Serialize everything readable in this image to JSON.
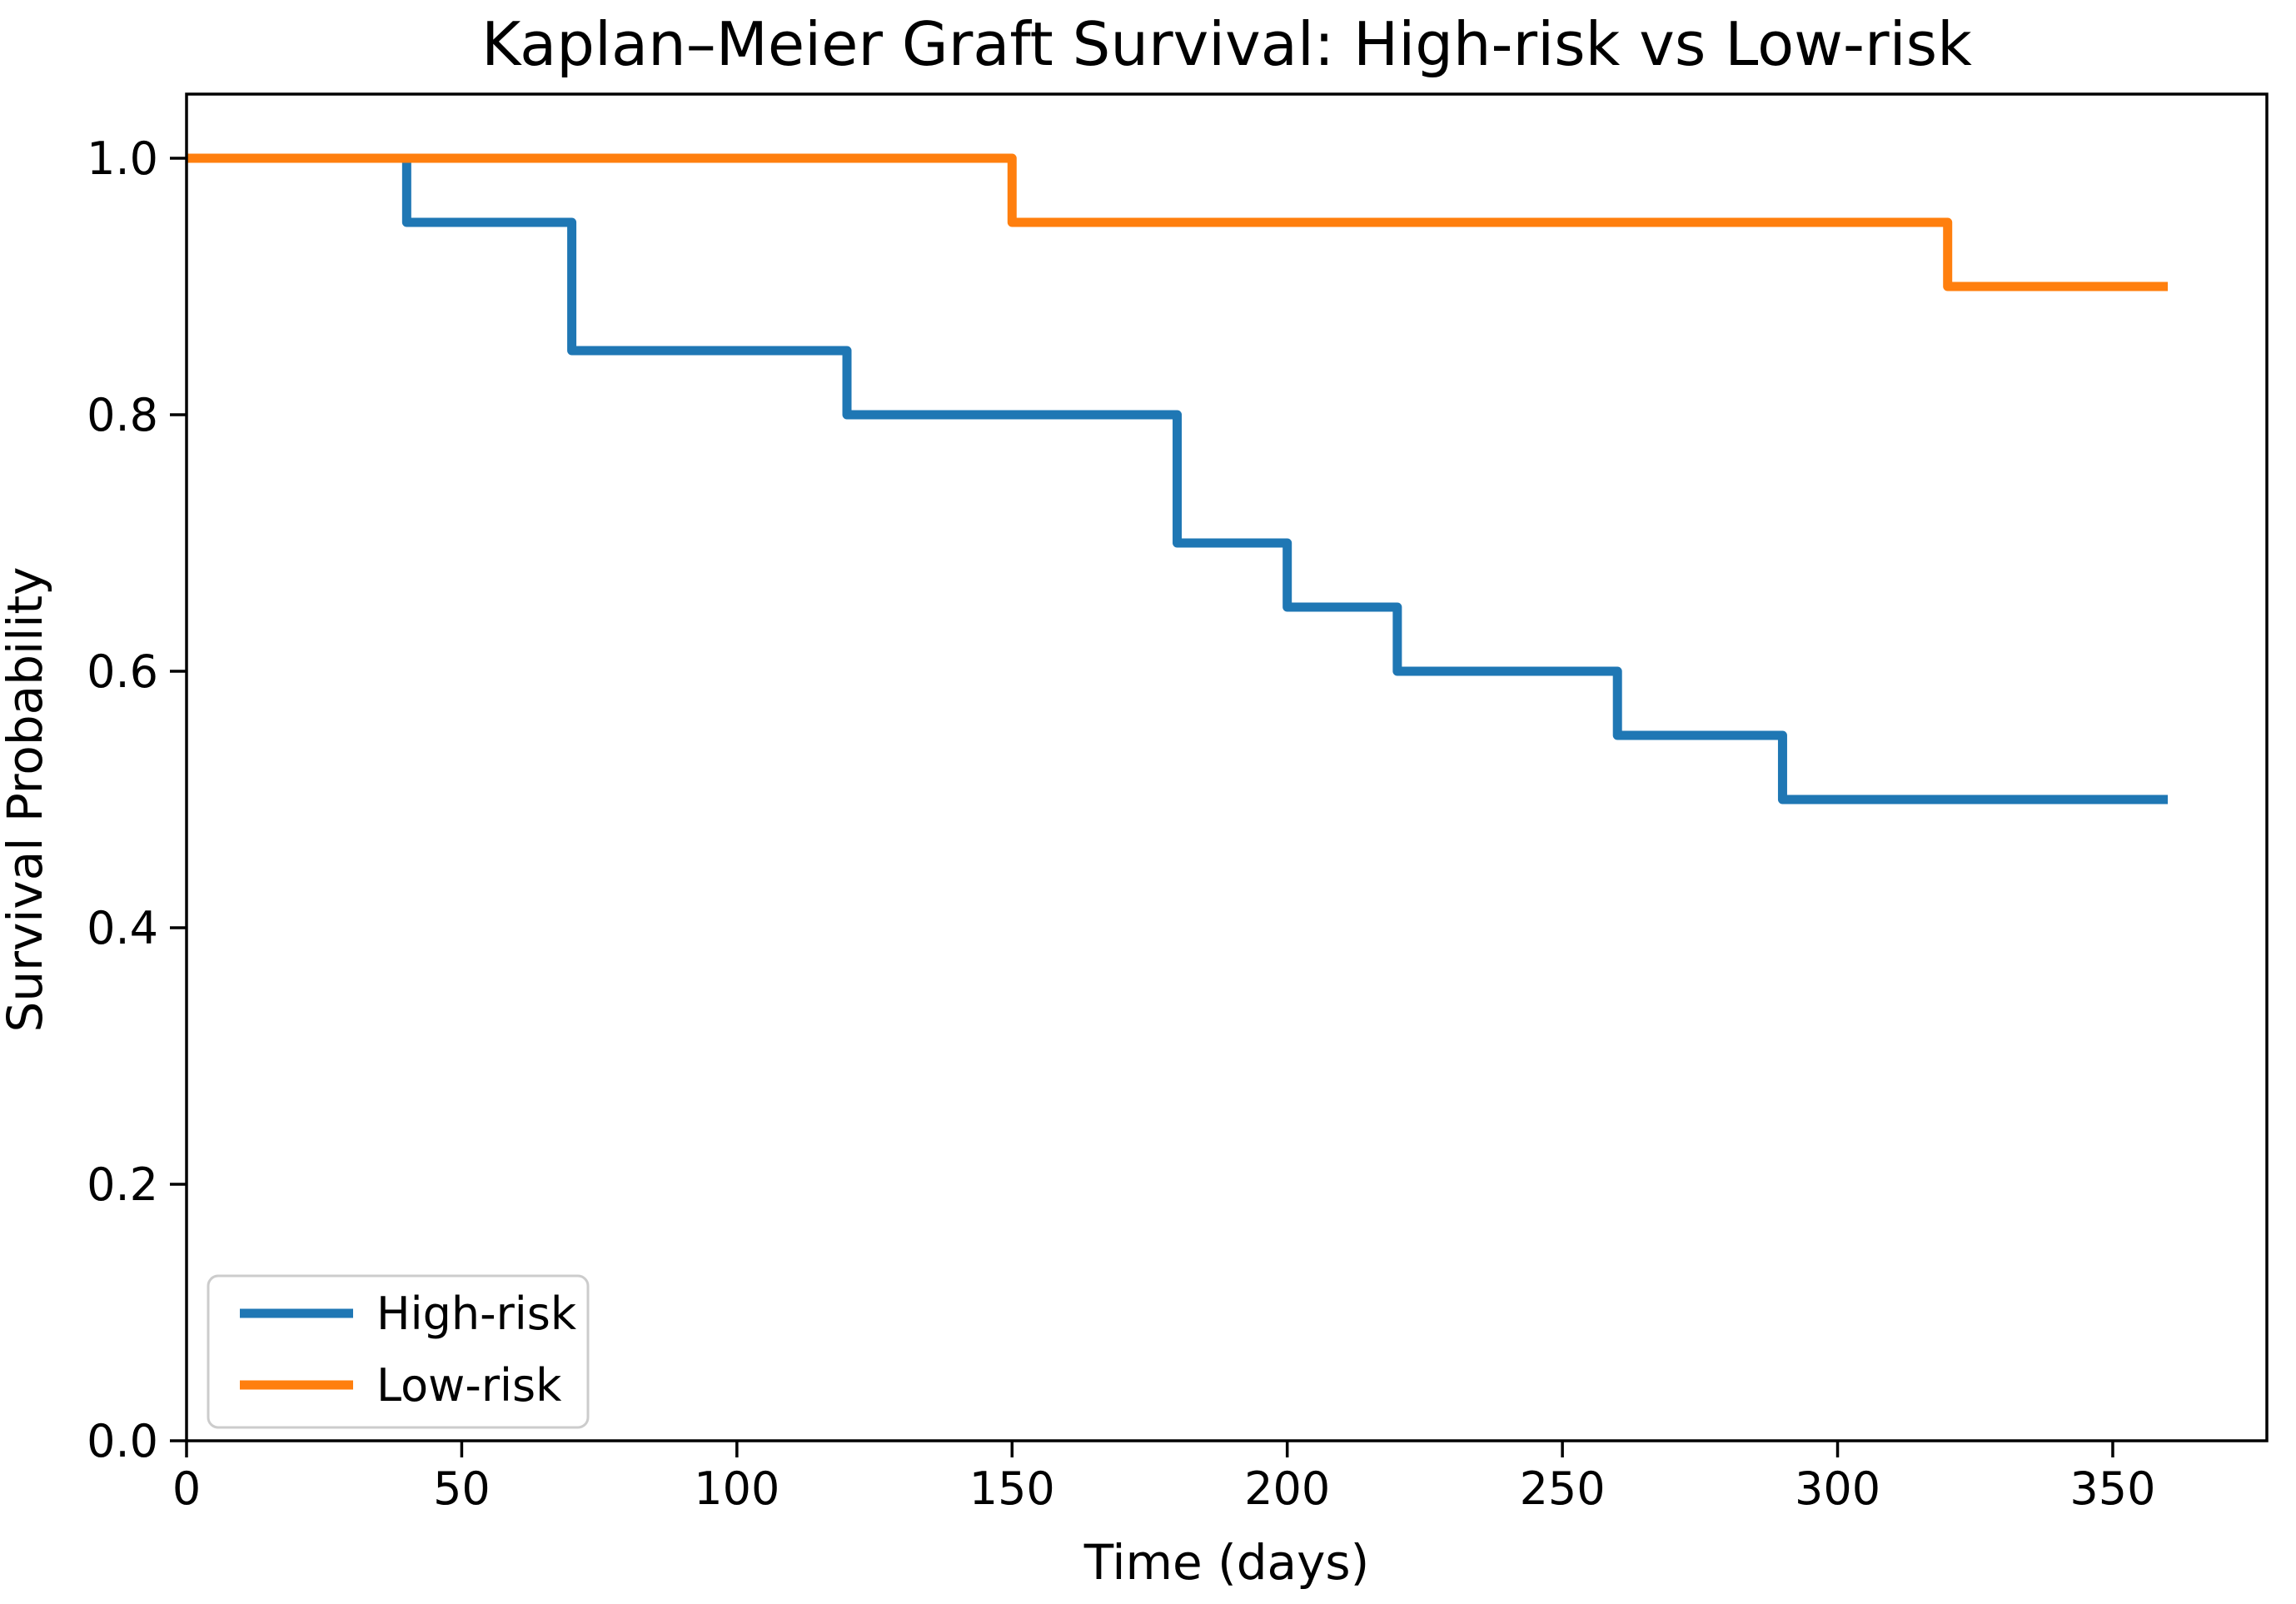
{
  "chart_data": {
    "type": "line",
    "subtype": "kaplan-meier-step",
    "title": "Kaplan–Meier Graft Survival: High-risk vs Low-risk",
    "xlabel": "Time (days)",
    "ylabel": "Survival Probability",
    "xlim": [
      0,
      378
    ],
    "ylim": [
      0,
      1.05
    ],
    "x_ticks": [
      0,
      50,
      100,
      150,
      200,
      250,
      300,
      350
    ],
    "y_ticks": [
      0.0,
      0.2,
      0.4,
      0.6,
      0.8,
      1.0
    ],
    "grid": false,
    "background_color": "#ffffff",
    "axis_color": "#000000",
    "legend": {
      "position": "lower left",
      "border_color": "#cccccc",
      "fill_color": "#ffffff"
    },
    "step_mode": "post",
    "series": [
      {
        "name": "High-risk",
        "color": "#1f77b4",
        "points": [
          [
            0,
            1.0
          ],
          [
            40,
            0.95
          ],
          [
            70,
            0.85
          ],
          [
            120,
            0.8
          ],
          [
            180,
            0.7
          ],
          [
            200,
            0.65
          ],
          [
            220,
            0.6
          ],
          [
            260,
            0.55
          ],
          [
            290,
            0.5
          ],
          [
            360,
            0.5
          ]
        ]
      },
      {
        "name": "Low-risk",
        "color": "#ff7f0e",
        "points": [
          [
            0,
            1.0
          ],
          [
            150,
            0.95
          ],
          [
            320,
            0.9
          ],
          [
            360,
            0.9
          ]
        ]
      }
    ]
  }
}
